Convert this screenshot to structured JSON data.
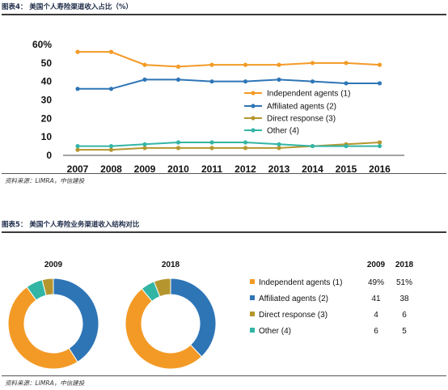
{
  "figure4": {
    "title": "图表4：  美国个人寿险渠道收入占比（%）",
    "source": "资料来源：LIMRA，中信建投"
  },
  "figure5": {
    "title": "图表5：  美国个人寿险业务渠道收入结构对比",
    "source": "资料来源：LIMRA，中信建投",
    "header_2009": "2009",
    "header_2018": "2018"
  },
  "colors": {
    "independent": "#f39a26",
    "affiliated": "#2e75b6",
    "direct": "#b5962e",
    "other": "#33b5a5"
  },
  "chart_data": [
    {
      "type": "line",
      "title": "",
      "xlabel": "",
      "ylabel": "",
      "x": [
        "2007",
        "2008",
        "2009",
        "2010",
        "2011",
        "2012",
        "2013",
        "2014",
        "2015",
        "2016"
      ],
      "ylim": [
        0,
        60
      ],
      "yticks": [
        "0",
        "10",
        "20",
        "30",
        "40",
        "50",
        "60%"
      ],
      "legend_position": "right",
      "grid": false,
      "series": [
        {
          "name": "Independent agents (1)",
          "values": [
            56,
            56,
            49,
            48,
            49,
            49,
            49,
            50,
            50,
            49
          ]
        },
        {
          "name": "Affiliated agents (2)",
          "values": [
            36,
            36,
            41,
            41,
            40,
            40,
            41,
            40,
            39,
            39
          ]
        },
        {
          "name": "Direct response (3)",
          "values": [
            3,
            3,
            4,
            4,
            4,
            4,
            4,
            5,
            6,
            7
          ]
        },
        {
          "name": "Other (4)",
          "values": [
            5,
            5,
            6,
            7,
            7,
            7,
            6,
            5,
            5,
            5
          ]
        }
      ]
    },
    {
      "type": "pie",
      "donut": true,
      "title": "2009",
      "labels": [
        "Independent agents (1)",
        "Affiliated agents (2)",
        "Direct response (3)",
        "Other (4)"
      ],
      "values": [
        49,
        41,
        4,
        6
      ]
    },
    {
      "type": "pie",
      "donut": true,
      "title": "2018",
      "labels": [
        "Independent agents (1)",
        "Affiliated agents (2)",
        "Direct response (3)",
        "Other (4)"
      ],
      "values": [
        51,
        38,
        6,
        5
      ]
    },
    {
      "type": "table",
      "columns": [
        "",
        "2009",
        "2018"
      ],
      "rows": [
        [
          "Independent agents (1)",
          "49%",
          "51%"
        ],
        [
          "Affiliated agents (2)",
          "41",
          "38"
        ],
        [
          "Direct response (3)",
          "4",
          "6"
        ],
        [
          "Other (4)",
          "6",
          "5"
        ]
      ]
    }
  ]
}
